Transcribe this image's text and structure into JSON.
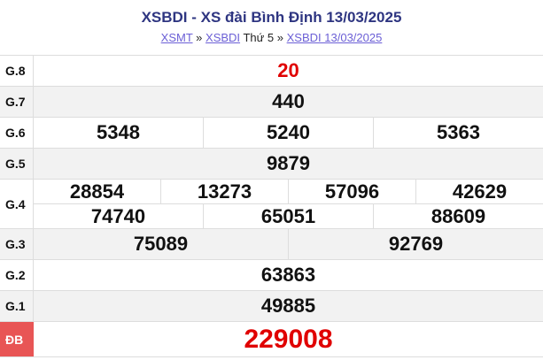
{
  "header": {
    "title": "XSBDI - XS đài Bình Định 13/03/2025",
    "breadcrumb": {
      "link1": "XSMT",
      "sep1": "»",
      "link2": "XSBDI",
      "text": "Thứ 5",
      "sep2": "»",
      "link3": "XSBDI 13/03/2025"
    }
  },
  "colors": {
    "title": "#2e3581",
    "link": "#6b5fd6",
    "highlight": "#e00000",
    "special_label_bg": "#e85555"
  },
  "prizes": [
    {
      "label": "G.8",
      "numbers": [
        [
          "20"
        ]
      ]
    },
    {
      "label": "G.7",
      "numbers": [
        [
          "440"
        ]
      ]
    },
    {
      "label": "G.6",
      "numbers": [
        [
          "5348",
          "5240",
          "5363"
        ]
      ]
    },
    {
      "label": "G.5",
      "numbers": [
        [
          "9879"
        ]
      ]
    },
    {
      "label": "G.4",
      "numbers": [
        [
          "28854",
          "13273",
          "57096",
          "42629"
        ],
        [
          "74740",
          "65051",
          "88609"
        ]
      ]
    },
    {
      "label": "G.3",
      "numbers": [
        [
          "75089",
          "92769"
        ]
      ]
    },
    {
      "label": "G.2",
      "numbers": [
        [
          "63863"
        ]
      ]
    },
    {
      "label": "G.1",
      "numbers": [
        [
          "49885"
        ]
      ]
    },
    {
      "label": "ĐB",
      "numbers": [
        [
          "229008"
        ]
      ]
    }
  ]
}
